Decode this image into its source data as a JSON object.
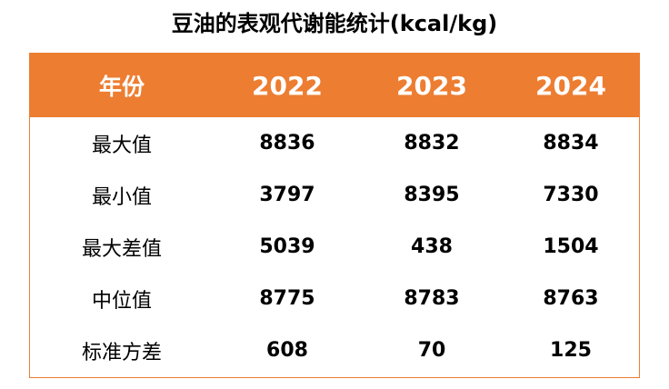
{
  "title": "豆油的表观代谢能统计(kcal/kg)",
  "colors": {
    "header_bg": "#ED7D31",
    "header_text": "#FFFFFF",
    "border": "#ED7D31"
  },
  "table": {
    "headers": [
      "年份",
      "2022",
      "2023",
      "2024"
    ],
    "rows": [
      [
        "最大值",
        "8836",
        "8832",
        "8834"
      ],
      [
        "最小值",
        "3797",
        "8395",
        "7330"
      ],
      [
        "最大差值",
        "5039",
        "438",
        "1504"
      ],
      [
        "中位值",
        "8775",
        "8783",
        "8763"
      ],
      [
        "标准方差",
        "608",
        "70",
        "125"
      ]
    ]
  }
}
